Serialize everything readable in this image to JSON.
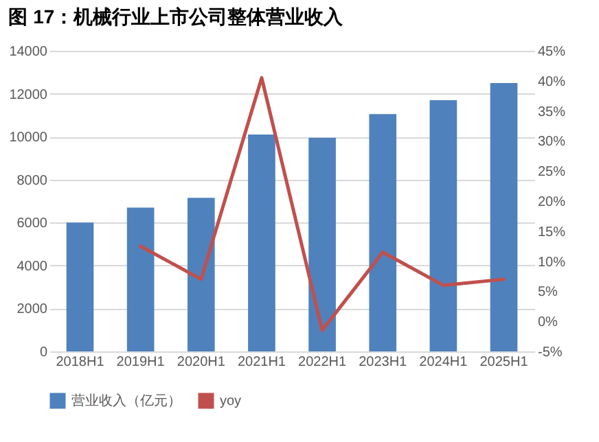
{
  "chart_data": {
    "type": "bar",
    "title": "图 17：机械行业上市公司整体营业收入",
    "categories": [
      "2018H1",
      "2019H1",
      "2020H1",
      "2021H1",
      "2022H1",
      "2023H1",
      "2024H1",
      "2025H1"
    ],
    "series": [
      {
        "name": "营业收入（亿元）",
        "color": "#4f81bd",
        "values": [
          6000,
          6700,
          7150,
          10100,
          9950,
          11050,
          11700,
          12500
        ]
      },
      {
        "name": "yoy",
        "type": "line",
        "axis": "y2",
        "color": "#c0504d",
        "values": [
          null,
          12.5,
          7,
          40.5,
          -1.5,
          11.5,
          6,
          7
        ]
      }
    ],
    "ylim": [
      0,
      14000
    ],
    "yticks": [
      0,
      2000,
      4000,
      6000,
      8000,
      10000,
      12000,
      14000
    ],
    "y2lim": [
      -5,
      45
    ],
    "y2ticks": [
      {
        "value": -5,
        "label": "-5%"
      },
      {
        "value": 0,
        "label": "0%"
      },
      {
        "value": 5,
        "label": "5%"
      },
      {
        "value": 10,
        "label": "10%"
      },
      {
        "value": 15,
        "label": "15%"
      },
      {
        "value": 20,
        "label": "20%"
      },
      {
        "value": 25,
        "label": "25%"
      },
      {
        "value": 30,
        "label": "30%"
      },
      {
        "value": 35,
        "label": "35%"
      },
      {
        "value": 40,
        "label": "40%"
      },
      {
        "value": 45,
        "label": "45%"
      }
    ],
    "grid": "y",
    "legend": "bottom",
    "line_style": "solid"
  }
}
